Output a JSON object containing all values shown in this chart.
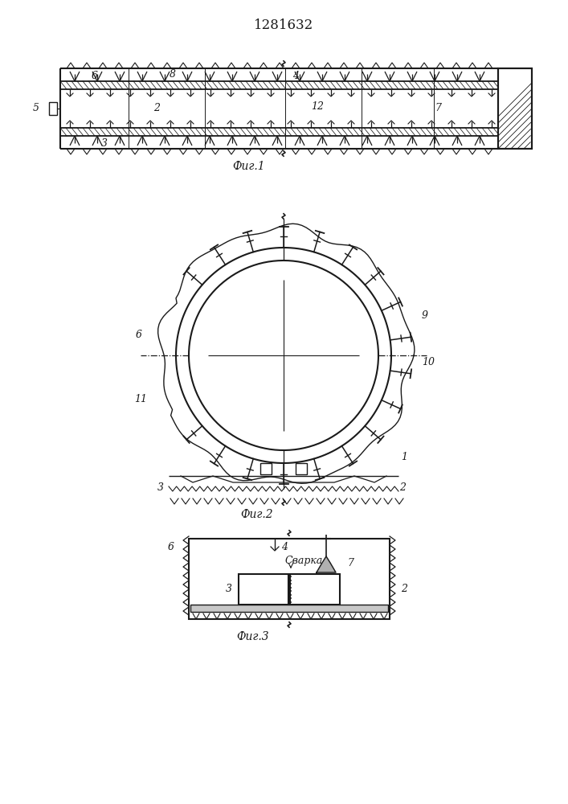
{
  "title": "1281632",
  "bg_color": "#ffffff",
  "line_color": "#1a1a1a",
  "fig1_label": "Фиг.1",
  "fig2_label": "Фиг.2",
  "fig3_label": "Фиг.3",
  "svar_label": "Сварка",
  "font_size_title": 12,
  "font_size_fig": 10,
  "font_size_num": 9
}
